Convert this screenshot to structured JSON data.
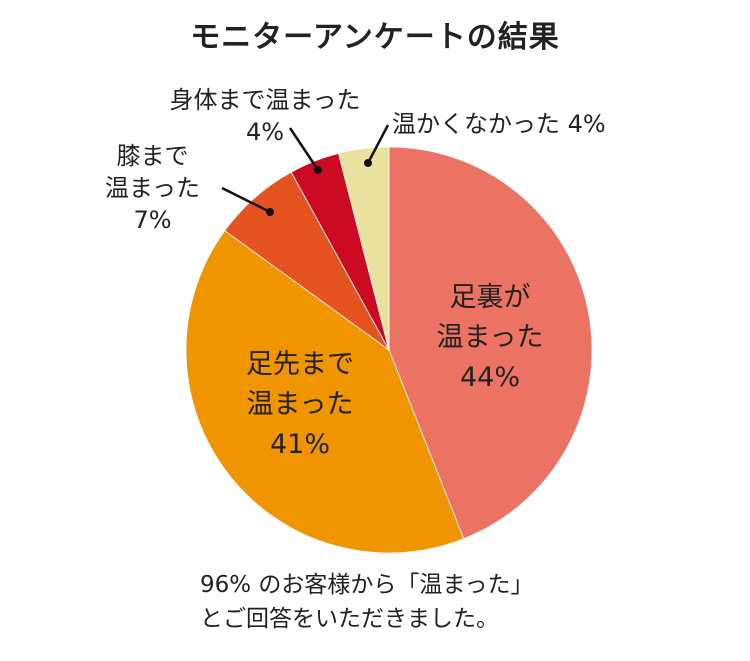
{
  "chart_data": {
    "type": "pie",
    "title": "モニターアンケートの結果",
    "slices": [
      {
        "label": "足裏が温まった",
        "value": 44,
        "value_label": "44%",
        "color": "#EC7263"
      },
      {
        "label": "足先まで温まった",
        "value": 41,
        "value_label": "41%",
        "color": "#F09400"
      },
      {
        "label": "膝まで温まった",
        "value": 7,
        "value_label": "7%",
        "color": "#E55320"
      },
      {
        "label": "身体まで温まった",
        "value": 4,
        "value_label": "4%",
        "color": "#CC0A22"
      },
      {
        "label": "温かくなかった",
        "value": 4,
        "value_label": "4%",
        "color": "#E9E29E"
      }
    ],
    "start": "top",
    "direction": "clockwise"
  },
  "note": {
    "line1": "96% のお客様から「温まった」",
    "line2": "とご回答をいただきました。"
  }
}
